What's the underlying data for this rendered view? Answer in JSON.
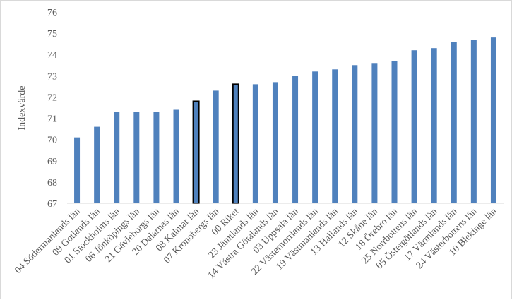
{
  "chart_data": {
    "type": "bar",
    "ylabel": "Indexvärde",
    "ylim": [
      67,
      76
    ],
    "yticks": [
      67,
      68,
      69,
      70,
      71,
      72,
      73,
      74,
      75,
      76
    ],
    "grid": false,
    "categories": [
      "04 Södermanlands län",
      "09 Gotlands län",
      "01 Stockholms län",
      "06 Jönköpings län",
      "21 Gävleborgs län",
      "20 Dalarnas län",
      "08 Kalmar län",
      "07 Kronobergs län",
      "00 Riket",
      "23 Jämtlands län",
      "14 Västra Götalands län",
      "03 Uppsala län",
      "22 Västernorrlands län",
      "19 Västmanlands län",
      "13 Hallands län",
      "12 Skåne län",
      "18 Örebro län",
      "25 Norrbottens län",
      "05 Östergötlands län",
      "17 Värmlands län",
      "24 Västerbottens län",
      "10 Blekinge län"
    ],
    "values": [
      70.1,
      70.6,
      71.3,
      71.3,
      71.3,
      71.4,
      71.8,
      72.3,
      72.6,
      72.6,
      72.7,
      73.0,
      73.2,
      73.3,
      73.5,
      73.6,
      73.7,
      74.2,
      74.3,
      74.6,
      74.7,
      74.8
    ],
    "highlighted": [
      "08 Kalmar län",
      "00 Riket"
    ],
    "bar_color": "#4f81bd",
    "highlight_outline_color": "#000000"
  }
}
